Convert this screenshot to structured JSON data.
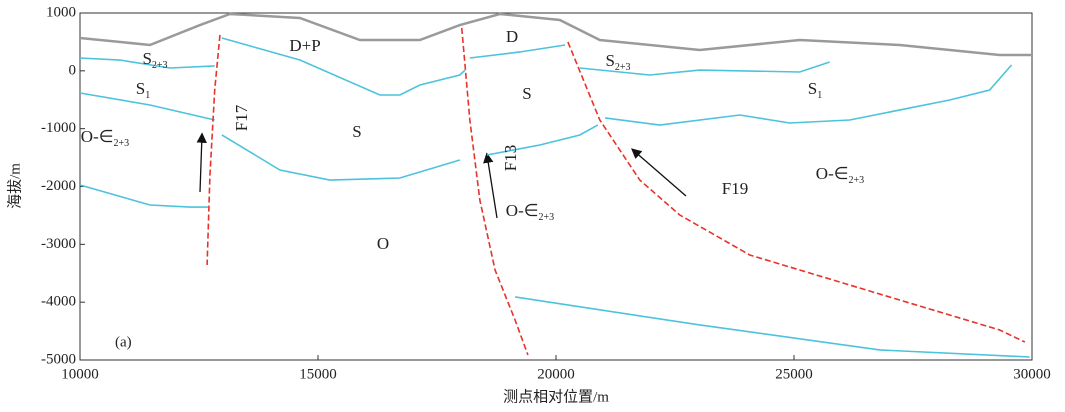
{
  "chart_data": {
    "type": "line",
    "xlabel": "测点相对位置/m",
    "ylabel": "海拔/m",
    "panel_label": "(a)",
    "xlim": [
      10000,
      30000
    ],
    "xticks": [
      10000,
      15000,
      20000,
      25000,
      30000
    ],
    "ylim": [
      -5000,
      1000
    ],
    "yticks": [
      1000,
      0,
      -1000,
      -2000,
      -3000,
      -4000,
      -5000
    ],
    "annotations": [
      {
        "text": "S",
        "sub": "2+3"
      },
      {
        "text": "S",
        "sub": "1"
      },
      {
        "text": "O-∈",
        "sub": "2+3"
      },
      {
        "text": "F17"
      },
      {
        "text": "D+P"
      },
      {
        "text": "S"
      },
      {
        "text": "D"
      },
      {
        "text": "S"
      },
      {
        "text": "F13"
      },
      {
        "text": "O-∈",
        "sub": "2+3"
      },
      {
        "text": "F19"
      },
      {
        "text": "O"
      },
      {
        "text": "S",
        "sub": "2+3"
      },
      {
        "text": "S",
        "sub": "1"
      },
      {
        "text": "O-∈",
        "sub": "2+3"
      }
    ],
    "series": [
      {
        "color": "#9a9a9a",
        "line_style": "solid",
        "x": [
          10000,
          11470,
          12520,
          13150,
          14620,
          15880,
          17140,
          17980,
          18820,
          20080,
          20920,
          23020,
          25120,
          27220,
          29320,
          30000
        ],
        "values": [
          568,
          447,
          792,
          983,
          914,
          533,
          533,
          792,
          983,
          879,
          533,
          360,
          533,
          447,
          274,
          274
        ]
      },
      {
        "color": "#4cc3dc",
        "line_style": "solid",
        "x": [
          10000,
          10840,
          11890,
          12830
        ],
        "values": [
          222,
          187,
          49,
          84
        ]
      },
      {
        "color": "#4cc3dc",
        "line_style": "solid",
        "x": [
          10000,
          11470,
          12830
        ],
        "values": [
          -383,
          -591,
          -850
        ]
      },
      {
        "color": "#4cc3dc",
        "line_style": "solid",
        "x": [
          10000,
          11470,
          12310,
          12690
        ],
        "values": [
          -1974,
          -2320,
          -2355,
          -2355
        ]
      },
      {
        "color": "#4cc3dc",
        "line_style": "solid",
        "x": [
          12980,
          14620,
          16300,
          16720,
          17140,
          17980,
          18090
        ],
        "values": [
          568,
          187,
          -418,
          -418,
          -245,
          -72,
          14
        ]
      },
      {
        "color": "#4cc3dc",
        "line_style": "solid",
        "x": [
          12980,
          14200,
          15250,
          16720,
          17980
        ],
        "values": [
          -1109,
          -1715,
          -1888,
          -1853,
          -1542
        ]
      },
      {
        "color": "#4cc3dc",
        "line_style": "solid",
        "x": [
          18190,
          19240,
          20190
        ],
        "values": [
          222,
          326,
          447
        ]
      },
      {
        "color": "#4cc3dc",
        "line_style": "solid",
        "x": [
          18550,
          19660,
          20500,
          20880
        ],
        "values": [
          -1455,
          -1282,
          -1109,
          -936
        ]
      },
      {
        "color": "#4cc3dc",
        "line_style": "solid",
        "x": [
          20500,
          21970,
          23020,
          25120,
          25750
        ],
        "values": [
          49,
          -72,
          14,
          -20,
          153
        ]
      },
      {
        "color": "#4cc3dc",
        "line_style": "solid",
        "x": [
          21030,
          22180,
          23860,
          24910,
          26170,
          28270,
          29110,
          29570
        ],
        "values": [
          -815,
          -937,
          -764,
          -902,
          -850,
          -504,
          -331,
          101
        ]
      },
      {
        "color": "#4cc3dc",
        "line_style": "solid",
        "x": [
          19140,
          23020,
          26800,
          29950
        ],
        "values": [
          -3910,
          -4394,
          -4826,
          -4948
        ]
      },
      {
        "color": "#e8322a",
        "line_style": "dashed",
        "x": [
          12940,
          12830,
          12730,
          12670
        ],
        "values": [
          620,
          -331,
          -1801,
          -3357
        ]
      },
      {
        "color": "#e8322a",
        "line_style": "dashed",
        "x": [
          18020,
          18190,
          18400,
          18720,
          19140,
          19410
        ],
        "values": [
          741,
          -850,
          -2233,
          -3444,
          -4308,
          -4913
        ]
      },
      {
        "color": "#e8322a",
        "line_style": "dashed",
        "x": [
          20250,
          20920,
          21760,
          22600,
          24070,
          25120,
          27220,
          29320,
          29850
        ],
        "values": [
          499,
          -850,
          -1888,
          -2493,
          -3184,
          -3444,
          -3963,
          -4481,
          -4689
        ]
      }
    ]
  }
}
